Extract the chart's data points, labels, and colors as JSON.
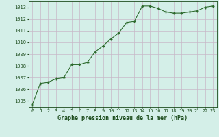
{
  "x": [
    0,
    1,
    2,
    3,
    4,
    5,
    6,
    7,
    8,
    9,
    10,
    11,
    12,
    13,
    14,
    15,
    16,
    17,
    18,
    19,
    20,
    21,
    22,
    23
  ],
  "y": [
    1004.7,
    1006.5,
    1006.6,
    1006.9,
    1007.0,
    1008.1,
    1008.1,
    1008.3,
    1009.2,
    1009.7,
    1010.3,
    1010.8,
    1011.7,
    1011.8,
    1013.1,
    1013.1,
    1012.9,
    1012.6,
    1012.5,
    1012.5,
    1012.6,
    1012.7,
    1013.0,
    1013.1
  ],
  "xlim": [
    -0.5,
    23.5
  ],
  "ylim": [
    1004.5,
    1013.5
  ],
  "yticks": [
    1005,
    1006,
    1007,
    1008,
    1009,
    1010,
    1011,
    1012,
    1013
  ],
  "xticks": [
    0,
    1,
    2,
    3,
    4,
    5,
    6,
    7,
    8,
    9,
    10,
    11,
    12,
    13,
    14,
    15,
    16,
    17,
    18,
    19,
    20,
    21,
    22,
    23
  ],
  "xlabel": "Graphe pression niveau de la mer (hPa)",
  "line_color": "#2d6a2d",
  "marker": "+",
  "bg_color": "#d4efe8",
  "grid_color": "#c8b8c8",
  "text_color": "#1a4a1a",
  "tick_label_fontsize": 5.0,
  "xlabel_fontsize": 6.0
}
